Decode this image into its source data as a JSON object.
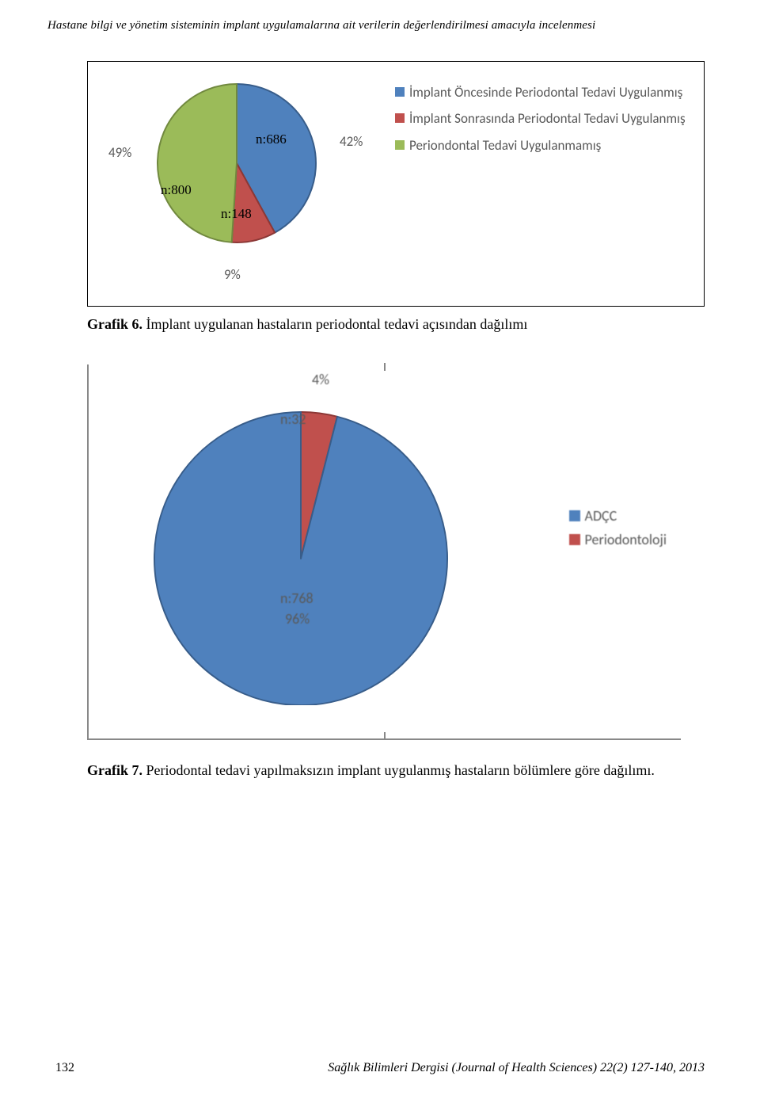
{
  "header": {
    "title": "Hastane bilgi ve yönetim sisteminin implant uygulamalarına ait verilerin değerlendirilmesi amacıyla incelenmesi"
  },
  "chart1": {
    "type": "pie",
    "slices": [
      {
        "label": "İmplant Öncesinde Periodontal Tedavi Uygulanmış",
        "value": 42,
        "n": "n:686",
        "color": "#4f81bd",
        "outline": "#385d8a"
      },
      {
        "label": "İmplant Sonrasında Periodontal Tedavi Uygulanmış",
        "value": 9,
        "n": "n:148",
        "color": "#c0504d",
        "outline": "#8c3836"
      },
      {
        "label": "Periondontal Tedavi Uygulanmamış",
        "value": 49,
        "n": "n:800",
        "color": "#9bbb59",
        "outline": "#71893f"
      }
    ],
    "percent_labels": {
      "blue": "42%",
      "red": "9%",
      "green": "49%"
    },
    "radius": 100,
    "stroke_width": 2,
    "label_fontsize": 17,
    "label_color": "#595959",
    "legend_fontfamily": "Calibri",
    "background": "#ffffff"
  },
  "caption1": {
    "prefix": "Grafik 6.",
    "text": " İmplant uygulanan hastaların periodontal tedavi açısından dağılımı"
  },
  "chart2": {
    "type": "pie",
    "slices": [
      {
        "label": "ADÇC",
        "value": 96,
        "n": "n:768",
        "color": "#4f81bd",
        "outline": "#385d8a"
      },
      {
        "label": "Periodontoloji",
        "value": 4,
        "n": "n:32",
        "color": "#c0504d",
        "outline": "#8c3836"
      }
    ],
    "percent_labels": {
      "blue": "96%",
      "red": "4%"
    },
    "radius": 185,
    "stroke_width": 2,
    "label_fontsize": 18,
    "label_color": "#595959",
    "axis_color": "#888888"
  },
  "caption2": {
    "prefix": "Grafik 7.",
    "text": " Periodontal tedavi yapılmaksızın implant uygulanmış hastaların bölümlere göre dağılımı."
  },
  "footer": {
    "page": "132",
    "journal": "Sağlık Bilimleri Dergisi (Journal of Health Sciences) 22(2) 127-140, 2013"
  }
}
